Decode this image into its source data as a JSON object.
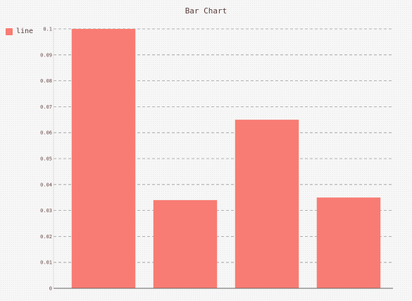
{
  "chart_data": {
    "type": "bar",
    "title": "Bar Chart",
    "xlabel": "",
    "ylabel": "",
    "categories": [
      "",
      "",
      "",
      ""
    ],
    "series": [
      {
        "name": "line",
        "values": [
          0.1,
          0.034,
          0.065,
          0.035
        ],
        "color": "#f87c73"
      }
    ],
    "ylim": [
      0,
      0.1
    ],
    "yticks": [
      "0",
      "0.01",
      "0.02",
      "0.03",
      "0.04",
      "0.05",
      "0.06",
      "0.07",
      "0.08",
      "0.09",
      "0.1"
    ],
    "grid": true,
    "legend_position": "top-left"
  },
  "colors": {
    "bar": "#f87c73",
    "text": "#5a3b3b",
    "grid": "#9a9a9a",
    "axis": "#666666"
  }
}
